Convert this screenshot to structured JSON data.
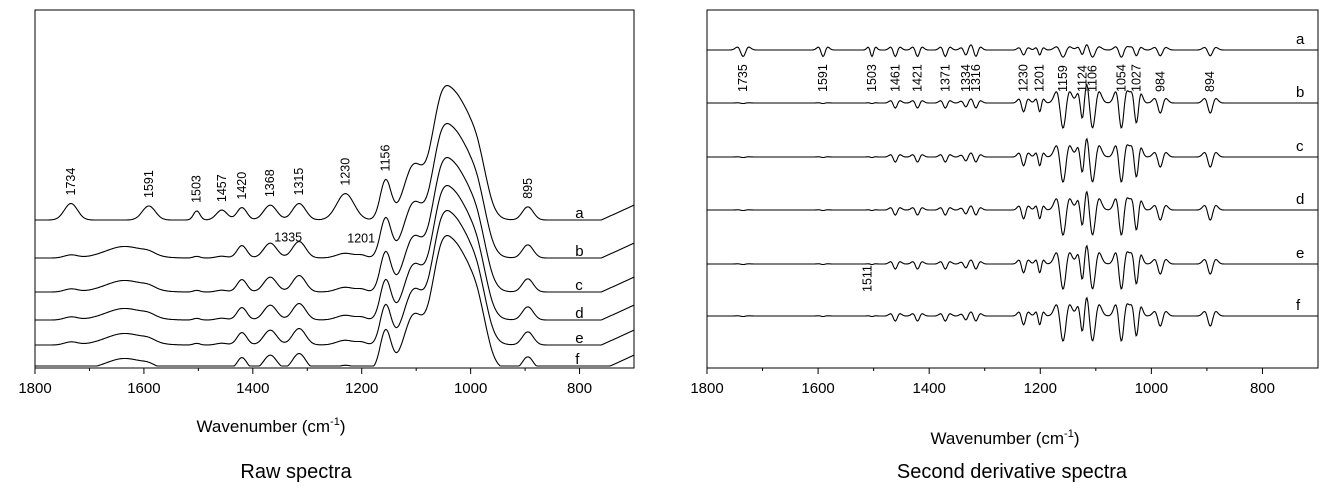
{
  "chart_data": [
    {
      "type": "line",
      "caption": "Raw spectra",
      "xlabel": "Wavenumber (cm",
      "xlabel_sup": "-1",
      "xlabel_end": ")",
      "ylabel": "",
      "xlim": [
        1800,
        700
      ],
      "x_ticks": [
        "1800",
        "1600",
        "1400",
        "1200",
        "1000",
        "800"
      ],
      "x_tick_values": [
        1800,
        1600,
        1400,
        1200,
        1000,
        800
      ],
      "grid": false,
      "series_labels": [
        "a",
        "b",
        "c",
        "d",
        "e",
        "f"
      ],
      "peak_labels": [
        {
          "text": "1734",
          "x": 1734,
          "series": "a"
        },
        {
          "text": "1591",
          "x": 1591,
          "series": "a"
        },
        {
          "text": "1503",
          "x": 1503,
          "series": "a"
        },
        {
          "text": "1457",
          "x": 1457,
          "series": "a"
        },
        {
          "text": "1420",
          "x": 1420,
          "series": "a"
        },
        {
          "text": "1368",
          "x": 1368,
          "series": "a"
        },
        {
          "text": "1315",
          "x": 1315,
          "series": "a"
        },
        {
          "text": "1230",
          "x": 1230,
          "series": "a"
        },
        {
          "text": "1156",
          "x": 1156,
          "series": "a"
        },
        {
          "text": "895",
          "x": 895,
          "series": "a"
        },
        {
          "text": "1335",
          "x": 1335,
          "series": "b"
        },
        {
          "text": "1201",
          "x": 1201,
          "series": "b"
        }
      ]
    },
    {
      "type": "line",
      "caption": "Second derivative spectra",
      "xlabel": "Wavenumber (cm",
      "xlabel_sup": "-1",
      "xlabel_end": ")",
      "ylabel": "",
      "xlim": [
        1800,
        700
      ],
      "x_ticks": [
        "1800",
        "1600",
        "1400",
        "1200",
        "1000",
        "800"
      ],
      "x_tick_values": [
        1800,
        1600,
        1400,
        1200,
        1000,
        800
      ],
      "grid": false,
      "series_labels": [
        "a",
        "b",
        "c",
        "d",
        "e",
        "f"
      ],
      "peak_labels": [
        {
          "text": "1735",
          "x": 1735
        },
        {
          "text": "1591",
          "x": 1591
        },
        {
          "text": "1503",
          "x": 1503
        },
        {
          "text": "1461",
          "x": 1461
        },
        {
          "text": "1421",
          "x": 1421
        },
        {
          "text": "1371",
          "x": 1371
        },
        {
          "text": "1334",
          "x": 1334
        },
        {
          "text": "1316",
          "x": 1316
        },
        {
          "text": "1230",
          "x": 1230
        },
        {
          "text": "1201",
          "x": 1201
        },
        {
          "text": "1159",
          "x": 1159
        },
        {
          "text": "1124",
          "x": 1124
        },
        {
          "text": "1106",
          "x": 1106
        },
        {
          "text": "1054",
          "x": 1054
        },
        {
          "text": "1027",
          "x": 1027
        },
        {
          "text": "984",
          "x": 984
        },
        {
          "text": "894",
          "x": 894
        },
        {
          "text": "1511",
          "x": 1511,
          "series": "e"
        }
      ]
    }
  ]
}
